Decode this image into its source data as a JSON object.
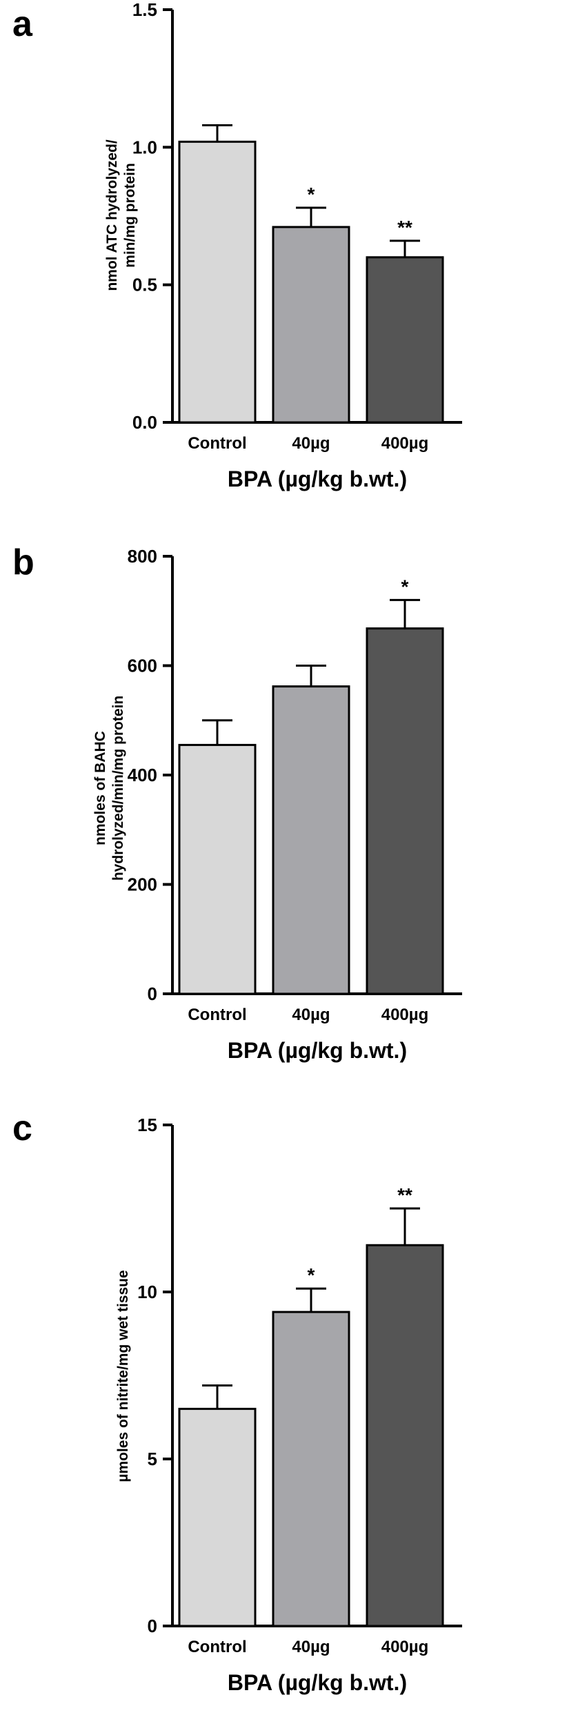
{
  "chart_data": [
    {
      "panel_label": "a",
      "type": "bar",
      "categories": [
        "Control",
        "40µg",
        "400µg"
      ],
      "values": [
        1.02,
        0.71,
        0.6
      ],
      "errors": [
        0.06,
        0.07,
        0.06
      ],
      "significance": [
        "",
        "*",
        "**"
      ],
      "ylim": [
        0,
        1.5
      ],
      "yticks": [
        "0.0",
        "0.5",
        "1.0",
        "1.5"
      ],
      "ylabel": [
        "nmol ATC hydrolyzed/",
        "min/mg protein"
      ],
      "xlabel": "BPA (µg/kg b.wt.)",
      "bar_colors": [
        "#d8d8d8",
        "#a6a6aa",
        "#555555"
      ],
      "grid": false
    },
    {
      "panel_label": "b",
      "type": "bar",
      "categories": [
        "Control",
        "40µg",
        "400µg"
      ],
      "values": [
        455,
        562,
        668
      ],
      "errors": [
        45,
        38,
        52
      ],
      "significance": [
        "",
        "",
        "*"
      ],
      "ylim": [
        0,
        800
      ],
      "yticks": [
        "0",
        "200",
        "400",
        "600",
        "800"
      ],
      "ylabel": [
        "nmoles of BAHC",
        "hydrolyzed/min/mg protein"
      ],
      "xlabel": "BPA (µg/kg b.wt.)",
      "bar_colors": [
        "#d8d8d8",
        "#a6a6aa",
        "#555555"
      ],
      "grid": false
    },
    {
      "panel_label": "c",
      "type": "bar",
      "categories": [
        "Control",
        "40µg",
        "400µg"
      ],
      "values": [
        6.5,
        9.4,
        11.4
      ],
      "errors": [
        0.7,
        0.7,
        1.1
      ],
      "significance": [
        "",
        "*",
        "**"
      ],
      "ylim": [
        0,
        15
      ],
      "yticks": [
        "0",
        "5",
        "10",
        "15"
      ],
      "ylabel": [
        "µmoles of nitrite/mg wet tissue"
      ],
      "xlabel": "BPA (µg/kg b.wt.)",
      "bar_colors": [
        "#d8d8d8",
        "#a6a6aa",
        "#555555"
      ],
      "grid": false
    }
  ]
}
